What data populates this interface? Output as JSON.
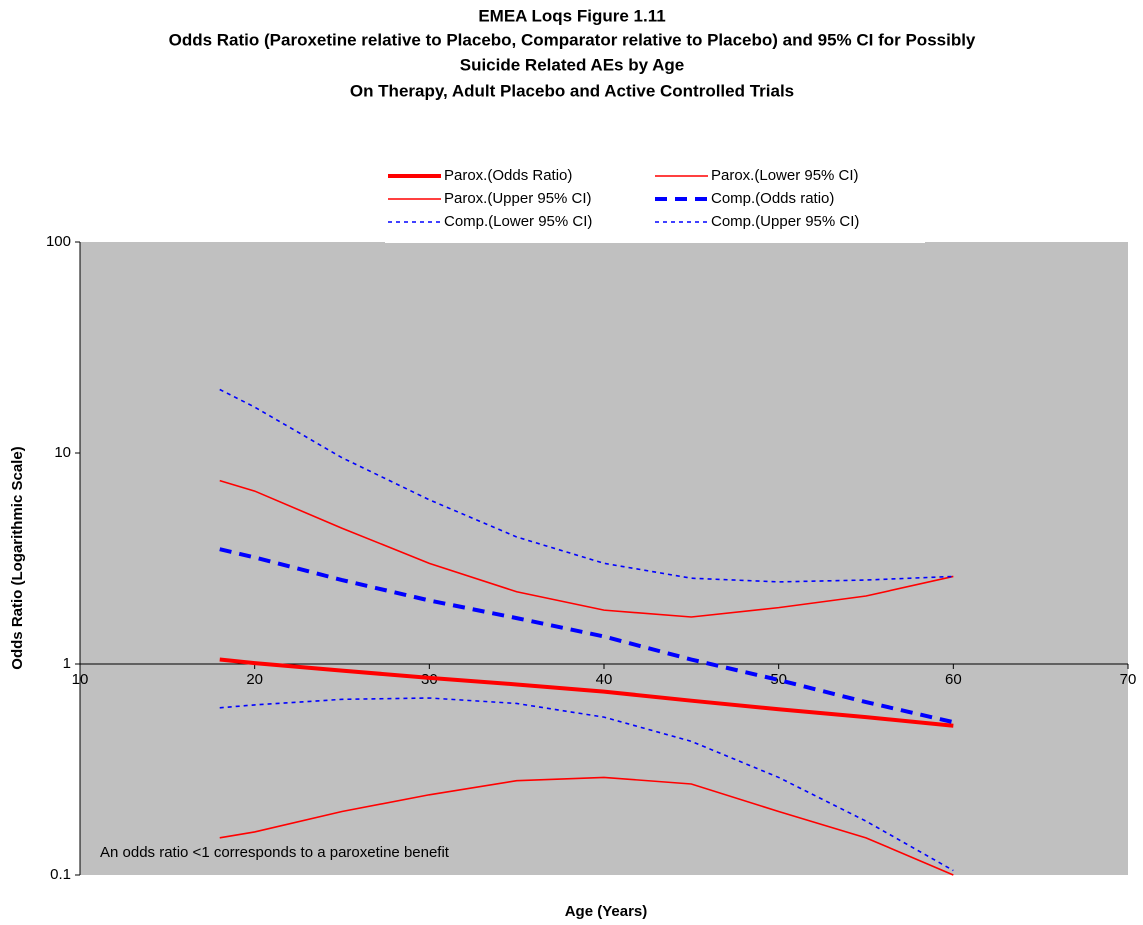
{
  "chart_data": {
    "type": "line",
    "title": [
      "EMEA Loqs Figure 1.11",
      "Odds Ratio (Paroxetine relative to Placebo, Comparator relative to Placebo) and 95% CI for Possibly",
      "Suicide Related AEs by Age",
      "On Therapy, Adult Placebo and Active Controlled Trials"
    ],
    "xlabel": "Age (Years)",
    "ylabel": "Odds Ratio (Logarithmic Scale)",
    "annotation": "An odds ratio <1 corresponds to a paroxetine benefit",
    "x": [
      18,
      20,
      25,
      30,
      35,
      40,
      45,
      50,
      55,
      60
    ],
    "series": [
      {
        "name": "Parox.(Odds Ratio)",
        "color": "#ff0000",
        "style": "thick",
        "values": [
          1.05,
          1.01,
          0.93,
          0.86,
          0.8,
          0.74,
          0.67,
          0.61,
          0.56,
          0.51
        ]
      },
      {
        "name": "Parox.(Lower 95% CI)",
        "color": "#ff0000",
        "style": "thin",
        "values": [
          0.15,
          0.16,
          0.2,
          0.24,
          0.28,
          0.29,
          0.27,
          0.2,
          0.15,
          0.1
        ]
      },
      {
        "name": "Parox.(Upper 95% CI)",
        "color": "#ff0000",
        "style": "thin",
        "values": [
          7.4,
          6.6,
          4.4,
          3.0,
          2.2,
          1.8,
          1.67,
          1.85,
          2.1,
          2.6
        ]
      },
      {
        "name": "Comp.(Odds ratio)",
        "color": "#0000ff",
        "style": "dash",
        "values": [
          3.5,
          3.2,
          2.5,
          2.0,
          1.65,
          1.35,
          1.05,
          0.84,
          0.66,
          0.53
        ]
      },
      {
        "name": "Comp.(Lower 95% CI)",
        "color": "#0000ff",
        "style": "dot",
        "values": [
          0.62,
          0.64,
          0.68,
          0.69,
          0.65,
          0.56,
          0.43,
          0.29,
          0.18,
          0.105
        ]
      },
      {
        "name": "Comp.(Upper 95% CI)",
        "color": "#0000ff",
        "style": "dot",
        "values": [
          20,
          16.5,
          9.5,
          6.0,
          4.0,
          3.0,
          2.55,
          2.45,
          2.5,
          2.6
        ]
      }
    ],
    "xlim": [
      10,
      70
    ],
    "xticks": [
      10,
      20,
      30,
      40,
      50,
      60,
      70
    ],
    "ylim": [
      0.1,
      100
    ],
    "yticks": [
      0.1,
      1,
      10,
      100
    ],
    "log_y": true,
    "x_axis_crosses": 1,
    "plot_background": "#c0c0c0",
    "legend": "top"
  }
}
